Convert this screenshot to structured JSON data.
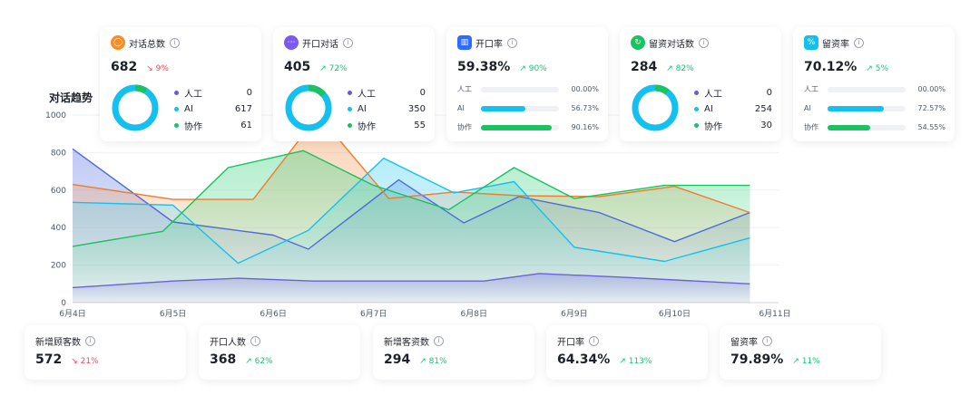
{
  "chart_title": "对话趋势",
  "cards": [
    {
      "title": "对话总数",
      "value": "682",
      "trend": "9%",
      "dir": "down",
      "color": "#ff8a1f",
      "icon": "chat-icon",
      "donut": [
        {
          "name": "人工",
          "value": "0",
          "color": "#6b5bd6"
        },
        {
          "name": "AI",
          "value": "617",
          "color": "#14c0f0"
        },
        {
          "name": "协作",
          "value": "61",
          "color": "#1cc164"
        }
      ]
    },
    {
      "title": "开口对话",
      "value": "405",
      "trend": "72%",
      "dir": "up",
      "color": "#7a5af0",
      "icon": "message-icon",
      "donut": [
        {
          "name": "人工",
          "value": "0",
          "color": "#6b5bd6"
        },
        {
          "name": "AI",
          "value": "350",
          "color": "#14c0f0"
        },
        {
          "name": "协作",
          "value": "55",
          "color": "#1cc164"
        }
      ]
    },
    {
      "title": "开口率",
      "value": "59.38%",
      "trend": "90%",
      "dir": "up",
      "color": "#2f6bff",
      "icon": "bar-chart-icon",
      "bars": [
        {
          "name": "人工",
          "pct": "00.00%",
          "frac": 0,
          "color": "#14c0f0"
        },
        {
          "name": "AI",
          "pct": "56.73%",
          "frac": 0.5673,
          "color": "#14c0f0"
        },
        {
          "name": "协作",
          "pct": "90.16%",
          "frac": 0.9016,
          "color": "#1cc164"
        }
      ]
    },
    {
      "title": "留资对话数",
      "value": "284",
      "trend": "82%",
      "dir": "up",
      "color": "#1cc164",
      "icon": "lead-icon",
      "donut": [
        {
          "name": "人工",
          "value": "0",
          "color": "#6b5bd6"
        },
        {
          "name": "AI",
          "value": "254",
          "color": "#14c0f0"
        },
        {
          "name": "协作",
          "value": "30",
          "color": "#1cc164"
        }
      ]
    },
    {
      "title": "留资率",
      "value": "70.12%",
      "trend": "5%",
      "dir": "up",
      "color": "#14c0f0",
      "icon": "percent-icon",
      "bars": [
        {
          "name": "人工",
          "pct": "00.00%",
          "frac": 0,
          "color": "#14c0f0"
        },
        {
          "name": "AI",
          "pct": "72.57%",
          "frac": 0.7257,
          "color": "#14c0f0"
        },
        {
          "name": "协作",
          "pct": "54.55%",
          "frac": 0.5455,
          "color": "#1cc164"
        }
      ]
    }
  ],
  "bottom_cards": [
    {
      "title": "新增顾客数",
      "value": "572",
      "trend": "21%",
      "dir": "down"
    },
    {
      "title": "开口人数",
      "value": "368",
      "trend": "62%",
      "dir": "up"
    },
    {
      "title": "新增客资数",
      "value": "294",
      "trend": "81%",
      "dir": "up"
    },
    {
      "title": "开口率",
      "value": "64.34%",
      "trend": "113%",
      "dir": "up"
    },
    {
      "title": "留资率",
      "value": "79.89%",
      "trend": "11%",
      "dir": "up"
    }
  ],
  "chart_data": {
    "type": "area",
    "x": [
      0,
      1,
      1.7,
      2.3,
      3,
      3.4,
      4,
      4.5,
      5,
      5.4,
      6,
      6.8
    ],
    "x_ticks": [
      "6月4日",
      "6月5日",
      "6月6日",
      "6月7日",
      "6月8日",
      "6月9日",
      "6月10日",
      "6月11日"
    ],
    "y_ticks": [
      "0",
      "200",
      "400",
      "600",
      "800",
      "1000"
    ],
    "ylim": [
      0,
      1000
    ],
    "grid": true,
    "series": [
      {
        "color": "#4e6cd8",
        "fill": "#6f86e6",
        "points": [
          [
            0,
            820
          ],
          [
            1,
            430
          ],
          [
            2,
            360
          ],
          [
            2.35,
            285
          ],
          [
            3.25,
            655
          ],
          [
            3.9,
            425
          ],
          [
            4.45,
            565
          ],
          [
            5.25,
            480
          ],
          [
            6,
            325
          ],
          [
            6.75,
            480
          ]
        ]
      },
      {
        "color": "#ef7c2e",
        "fill": "#f29a5a",
        "points": [
          [
            0,
            630
          ],
          [
            1,
            550
          ],
          [
            1.8,
            550
          ],
          [
            2.45,
            1000
          ],
          [
            3.15,
            555
          ],
          [
            3.8,
            590
          ],
          [
            4.45,
            570
          ],
          [
            5.25,
            565
          ],
          [
            6,
            620
          ],
          [
            6.75,
            480
          ]
        ]
      },
      {
        "color": "#13c2ed",
        "fill": "#5ad7f2",
        "points": [
          [
            0,
            535
          ],
          [
            1,
            520
          ],
          [
            1.65,
            210
          ],
          [
            2.35,
            385
          ],
          [
            3.1,
            770
          ],
          [
            3.8,
            585
          ],
          [
            4.4,
            645
          ],
          [
            5,
            295
          ],
          [
            5.9,
            220
          ],
          [
            6.75,
            345
          ]
        ]
      },
      {
        "color": "#17c35e",
        "fill": "#53d88e",
        "points": [
          [
            0,
            300
          ],
          [
            0.9,
            380
          ],
          [
            1.55,
            720
          ],
          [
            2.3,
            810
          ],
          [
            3,
            625
          ],
          [
            3.75,
            495
          ],
          [
            4.4,
            720
          ],
          [
            5,
            555
          ],
          [
            5.9,
            625
          ],
          [
            6.75,
            625
          ]
        ]
      },
      {
        "color": "#6a62d6",
        "fill": "#8d88e0",
        "points": [
          [
            0,
            80
          ],
          [
            1,
            115
          ],
          [
            1.65,
            130
          ],
          [
            2.4,
            115
          ],
          [
            3.3,
            115
          ],
          [
            4.1,
            115
          ],
          [
            4.65,
            155
          ],
          [
            5.5,
            135
          ],
          [
            6.75,
            100
          ]
        ]
      }
    ]
  }
}
